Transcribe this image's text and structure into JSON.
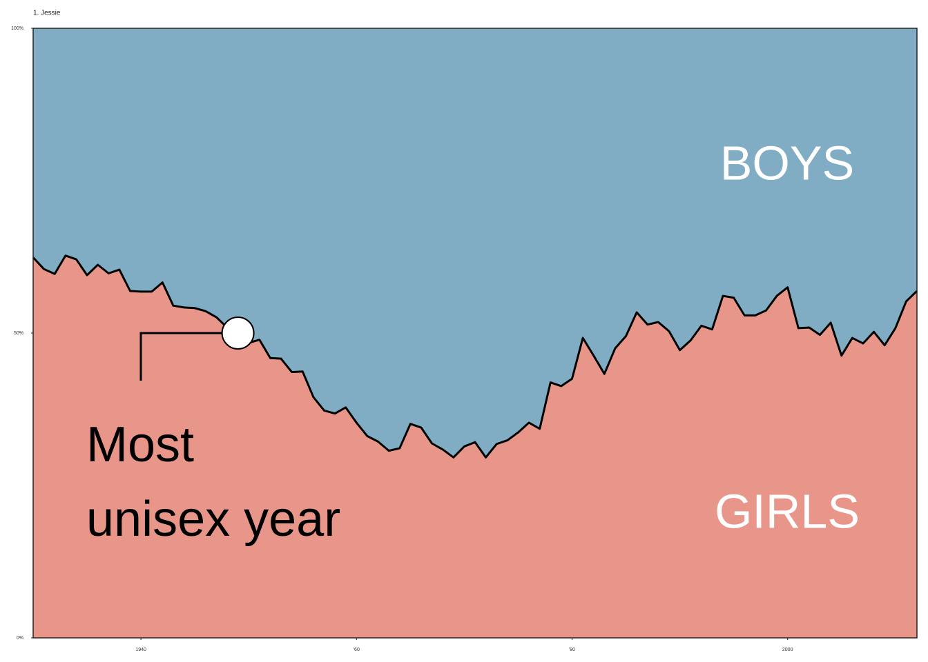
{
  "chart_data": {
    "type": "stacked_area",
    "title": "1. Jessie",
    "x": [
      1930,
      1931,
      1932,
      1933,
      1934,
      1935,
      1936,
      1937,
      1938,
      1939,
      1940,
      1941,
      1942,
      1943,
      1944,
      1945,
      1946,
      1947,
      1948,
      1949,
      1950,
      1951,
      1952,
      1953,
      1954,
      1955,
      1956,
      1957,
      1958,
      1959,
      1960,
      1961,
      1962,
      1963,
      1964,
      1965,
      1966,
      1967,
      1968,
      1969,
      1970,
      1971,
      1972,
      1973,
      1974,
      1975,
      1976,
      1977,
      1978,
      1979,
      1980,
      1981,
      1982,
      1983,
      1984,
      1985,
      1986,
      1987,
      1988,
      1989,
      1990,
      1991,
      1992,
      1993,
      1994,
      1995,
      1996,
      1997,
      1998,
      1999,
      2000,
      2001,
      2002,
      2003,
      2004,
      2005,
      2006,
      2007,
      2008,
      2009,
      2010,
      2011,
      2012
    ],
    "series": [
      {
        "name": "GIRLS",
        "color": "#e8968a",
        "values": [
          62.4,
          60.5,
          59.7,
          62.7,
          62.1,
          59.5,
          61.2,
          59.8,
          60.4,
          56.9,
          56.8,
          56.8,
          58.3,
          54.5,
          54.2,
          54.1,
          53.6,
          52.6,
          50.9,
          50.0,
          48.4,
          48.9,
          45.9,
          45.8,
          43.6,
          43.7,
          39.5,
          37.3,
          36.8,
          37.8,
          35.3,
          33.1,
          32.2,
          30.7,
          31.1,
          35.1,
          34.5,
          31.9,
          30.9,
          29.6,
          31.4,
          32.1,
          29.6,
          31.8,
          32.4,
          33.7,
          35.3,
          34.3,
          41.9,
          41.3,
          42.5,
          49.2,
          46.3,
          43.3,
          47.5,
          49.5,
          53.4,
          51.4,
          51.8,
          50.3,
          47.2,
          48.8,
          51.2,
          50.6,
          56.1,
          55.8,
          52.9,
          52.9,
          53.7,
          56.1,
          57.5,
          50.8,
          50.9,
          49.7,
          51.7,
          46.3,
          49.2,
          48.3,
          50.2,
          48.0,
          50.8,
          55.2,
          56.9
        ]
      },
      {
        "name": "BOYS",
        "color": "#80acc4",
        "values": [
          37.6,
          39.5,
          40.3,
          37.3,
          37.9,
          40.5,
          38.8,
          40.2,
          39.6,
          43.1,
          43.2,
          43.2,
          41.7,
          45.5,
          45.8,
          45.9,
          46.4,
          47.4,
          49.1,
          50.0,
          51.6,
          51.1,
          54.1,
          54.2,
          56.4,
          56.3,
          60.5,
          62.7,
          63.2,
          62.2,
          64.7,
          66.9,
          67.8,
          69.3,
          68.9,
          64.9,
          65.5,
          68.1,
          69.1,
          70.4,
          68.6,
          67.9,
          70.4,
          68.2,
          67.6,
          66.3,
          64.7,
          65.7,
          58.1,
          58.7,
          57.5,
          50.8,
          53.7,
          56.7,
          52.5,
          50.5,
          46.6,
          48.6,
          48.2,
          49.7,
          52.8,
          51.2,
          48.8,
          49.4,
          43.9,
          44.2,
          47.1,
          47.1,
          46.3,
          43.9,
          42.5,
          49.2,
          49.1,
          50.3,
          48.3,
          53.7,
          50.8,
          51.7,
          49.8,
          52.0,
          49.2,
          44.8,
          43.1
        ]
      }
    ],
    "line_color": "#000000",
    "annotation": {
      "lines": [
        "Most",
        "unisex year"
      ],
      "x": 1949,
      "y": 50
    },
    "xlim": [
      1930,
      2012
    ],
    "xticks": [
      1940,
      {
        "value": 1960,
        "label": "'60"
      },
      {
        "value": 1980,
        "label": "'80"
      },
      2000
    ],
    "ylim": [
      0,
      100
    ],
    "yticks": [
      {
        "value": 0,
        "label": "0%"
      },
      {
        "value": 50,
        "label": "50%"
      },
      {
        "value": 100,
        "label": "100%"
      }
    ]
  }
}
